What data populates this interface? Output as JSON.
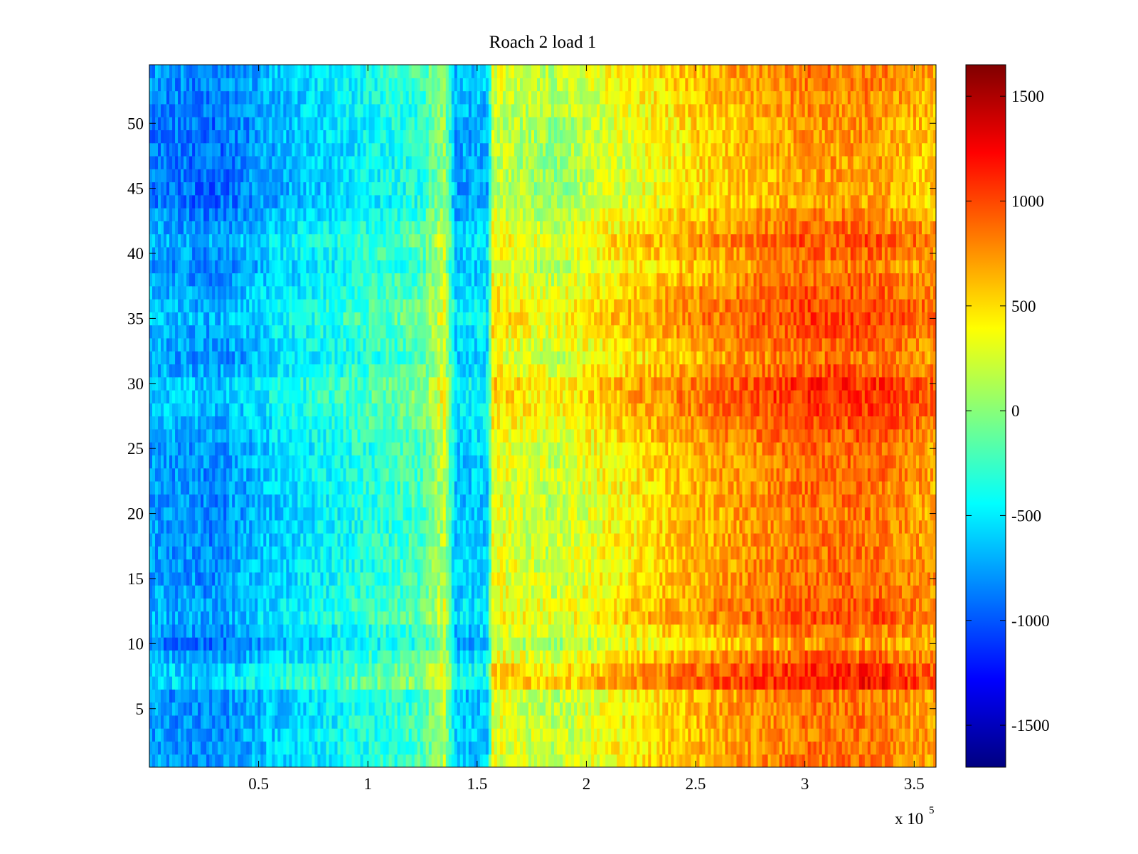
{
  "chart_data": {
    "type": "heatmap",
    "title": "Roach 2 load 1",
    "xlabel": "",
    "ylabel": "",
    "x_multiplier_label": "x 10",
    "x_multiplier_exponent": "5",
    "xlim": [
      0,
      360000
    ],
    "ylim": [
      0.5,
      54.5
    ],
    "x_ticks": [
      50000,
      100000,
      150000,
      200000,
      250000,
      300000,
      350000
    ],
    "x_tick_labels": [
      "0.5",
      "1",
      "1.5",
      "2",
      "2.5",
      "3",
      "3.5"
    ],
    "y_ticks": [
      5,
      10,
      15,
      20,
      25,
      30,
      35,
      40,
      45,
      50
    ],
    "y_tick_labels": [
      "5",
      "10",
      "15",
      "20",
      "25",
      "30",
      "35",
      "40",
      "45",
      "50"
    ],
    "rows": 54,
    "colorbar": {
      "colormap": "jet",
      "range": [
        -1700,
        1650
      ],
      "ticks": [
        -1500,
        -1000,
        -500,
        0,
        500,
        1000,
        1500
      ],
      "tick_labels": [
        "-1500",
        "-1000",
        "-500",
        "0",
        "500",
        "1000",
        "1500"
      ]
    },
    "column_profile": [
      {
        "x": 0,
        "value": -820
      },
      {
        "x": 30000,
        "value": -900
      },
      {
        "x": 60000,
        "value": -650
      },
      {
        "x": 100000,
        "value": -420
      },
      {
        "x": 125000,
        "value": -280
      },
      {
        "x": 135000,
        "value": 100
      },
      {
        "x": 140000,
        "value": -700
      },
      {
        "x": 155000,
        "value": -650
      },
      {
        "x": 157000,
        "value": 250
      },
      {
        "x": 185000,
        "value": 100
      },
      {
        "x": 210000,
        "value": 300
      },
      {
        "x": 250000,
        "value": 550
      },
      {
        "x": 300000,
        "value": 780
      },
      {
        "x": 330000,
        "value": 780
      },
      {
        "x": 360000,
        "value": 600
      }
    ],
    "row_profile": [
      {
        "row": 1,
        "value": 80
      },
      {
        "row": 6,
        "value": 60
      },
      {
        "row": 7,
        "value": 380
      },
      {
        "row": 8,
        "value": 320
      },
      {
        "row": 10,
        "value": -60
      },
      {
        "row": 12,
        "value": 200
      },
      {
        "row": 14,
        "value": 120
      },
      {
        "row": 20,
        "value": 60
      },
      {
        "row": 25,
        "value": 120
      },
      {
        "row": 29,
        "value": 300
      },
      {
        "row": 30,
        "value": 300
      },
      {
        "row": 32,
        "value": 80
      },
      {
        "row": 35,
        "value": 260
      },
      {
        "row": 37,
        "value": 180
      },
      {
        "row": 39,
        "value": 40
      },
      {
        "row": 41,
        "value": 200
      },
      {
        "row": 44,
        "value": -80
      },
      {
        "row": 50,
        "value": -40
      },
      {
        "row": 54,
        "value": 60
      }
    ]
  }
}
